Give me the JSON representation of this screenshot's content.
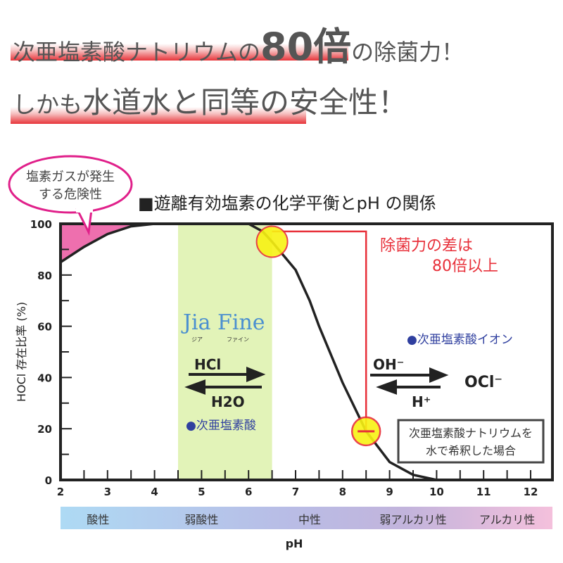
{
  "headline1": {
    "pre": "次亜塩素酸ナトリウムの",
    "big": "80倍",
    "post": "の除菌力！"
  },
  "headline2": {
    "pre": "しかも",
    "big": "水道水と同等の安全性！"
  },
  "bubble": {
    "line1": "塩素ガスが発生",
    "line2": "する危険性"
  },
  "colors": {
    "accent_red": "#e8303a",
    "bubble_pink": "#e0208a",
    "gas_fill": "#ee6fae",
    "band_green": "#e2f3b8",
    "marker_yellow": "#f8f213",
    "label_blue": "#2f3f9f"
  },
  "chart_data": {
    "type": "line",
    "title": "■遊離有効塩素の化学平衡とpH の関係",
    "xlabel": "pH",
    "ylabel": "HOCl 存在比率 (%)",
    "xlim": [
      2,
      12.5
    ],
    "ylim": [
      0,
      100
    ],
    "x_ticks": [
      "2",
      "3",
      "4",
      "5",
      "6",
      "7",
      "8",
      "9",
      "10",
      "11",
      "12"
    ],
    "y_ticks": [
      "0",
      "20",
      "40",
      "60",
      "80",
      "100"
    ],
    "series": [
      {
        "x": [
          2,
          2.5,
          3,
          3.5,
          4,
          6,
          6.3,
          6.5,
          7,
          7.3,
          7.5,
          8,
          8.5,
          9,
          9.5,
          10
        ],
        "y": [
          85,
          91,
          96,
          99,
          100,
          100,
          97,
          93,
          82,
          70,
          60,
          38,
          19,
          7,
          2,
          0
        ]
      }
    ],
    "highlight_band": {
      "x": [
        4.5,
        6.5
      ],
      "brand": "Jia Fine",
      "brand_kana1": "ジア",
      "brand_kana2": "ファイン"
    },
    "markers": [
      {
        "x": 6.5,
        "y": 93
      },
      {
        "x": 8.5,
        "y": 19
      }
    ],
    "annotation": {
      "line1": "除菌力の差は",
      "line2": "80倍以上"
    },
    "hocl_label": "●次亜塩素酸",
    "ocl_label": "●次亜塩素酸イオン",
    "eq_left": {
      "top": "HCl",
      "bottom": "H2O"
    },
    "eq_right": {
      "top": "OH⁻",
      "bottom": "H⁺",
      "product": "OCl⁻"
    },
    "note": {
      "line1": "次亜塩素酸ナトリウムを",
      "line2": "水で希釈した場合"
    },
    "ph_scale": [
      "酸性",
      "弱酸性",
      "中性",
      "弱アルカリ性",
      "アルカリ性"
    ]
  }
}
